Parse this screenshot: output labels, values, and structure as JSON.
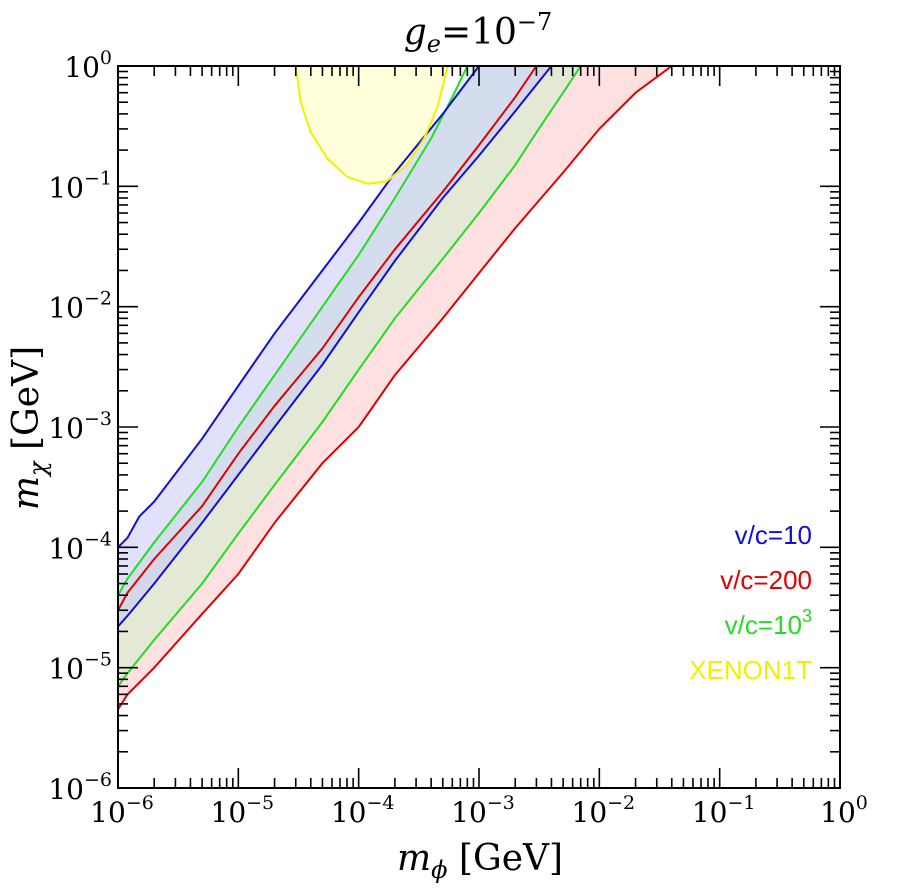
{
  "chart_data": {
    "type": "area",
    "title": {
      "base": "g",
      "sub": "e",
      "eq": "=10",
      "sup": "−7"
    },
    "xlabel": {
      "base": "m",
      "sub": "ϕ",
      "unit": " [GeV]"
    },
    "ylabel": {
      "base": "m",
      "sub": "χ",
      "unit": " [GeV]"
    },
    "xscale": "log",
    "yscale": "log",
    "xlim": [
      1e-06,
      1
    ],
    "ylim": [
      1e-06,
      1
    ],
    "x_ticks": [
      {
        "base": "10",
        "exp": "−6",
        "value": 1e-06
      },
      {
        "base": "10",
        "exp": "−5",
        "value": 1e-05
      },
      {
        "base": "10",
        "exp": "−4",
        "value": 0.0001
      },
      {
        "base": "10",
        "exp": "−3",
        "value": 0.001
      },
      {
        "base": "10",
        "exp": "−2",
        "value": 0.01
      },
      {
        "base": "10",
        "exp": "−1",
        "value": 0.1
      },
      {
        "base": "10",
        "exp": "0",
        "value": 1
      }
    ],
    "y_ticks": [
      {
        "base": "10",
        "exp": "−6",
        "value": 1e-06
      },
      {
        "base": "10",
        "exp": "−5",
        "value": 1e-05
      },
      {
        "base": "10",
        "exp": "−4",
        "value": 0.0001
      },
      {
        "base": "10",
        "exp": "−3",
        "value": 0.001
      },
      {
        "base": "10",
        "exp": "−2",
        "value": 0.01
      },
      {
        "base": "10",
        "exp": "−1",
        "value": 0.1
      },
      {
        "base": "10",
        "exp": "0",
        "value": 1
      }
    ],
    "series": [
      {
        "name": "v/c=200",
        "label": {
          "text": "v/c=200",
          "sup": ""
        },
        "color": "#e00000",
        "fill": "#ffc8c8",
        "upper": [
          [
            1e-06,
            3e-05
          ],
          [
            1.2e-06,
            4.2e-05
          ],
          [
            2e-06,
            8e-05
          ],
          [
            5e-06,
            0.00022
          ],
          [
            1e-05,
            0.0006
          ],
          [
            2e-05,
            0.0015
          ],
          [
            5e-05,
            0.0045
          ],
          [
            0.0001,
            0.012
          ],
          [
            0.0002,
            0.03
          ],
          [
            0.0005,
            0.09
          ],
          [
            0.001,
            0.22
          ],
          [
            0.002,
            0.55
          ],
          [
            0.003,
            1
          ]
        ],
        "lower": [
          [
            1e-06,
            4.5e-06
          ],
          [
            1.2e-06,
            6e-06
          ],
          [
            2e-06,
            1e-05
          ],
          [
            5e-06,
            2.8e-05
          ],
          [
            1e-05,
            6e-05
          ],
          [
            2e-05,
            0.00016
          ],
          [
            5e-05,
            0.0005
          ],
          [
            0.0001,
            0.001
          ],
          [
            0.0002,
            0.0027
          ],
          [
            0.0005,
            0.008
          ],
          [
            0.001,
            0.019
          ],
          [
            0.002,
            0.045
          ],
          [
            0.005,
            0.13
          ],
          [
            0.01,
            0.3
          ],
          [
            0.02,
            0.6
          ],
          [
            0.04,
            1
          ]
        ]
      },
      {
        "name": "v/c=10^3",
        "label": {
          "text": "v/c=10",
          "sup": "3"
        },
        "color": "#22dd22",
        "fill": "#ccf0cc",
        "upper": [
          [
            1e-06,
            4e-05
          ],
          [
            1.2e-06,
            5.5e-05
          ],
          [
            2e-06,
            0.00011
          ],
          [
            5e-06,
            0.00035
          ],
          [
            1e-05,
            0.001
          ],
          [
            2e-05,
            0.0027
          ],
          [
            5e-05,
            0.01
          ],
          [
            0.0001,
            0.027
          ],
          [
            0.0002,
            0.08
          ],
          [
            0.0004,
            0.25
          ],
          [
            0.0006,
            0.55
          ],
          [
            0.0008,
            1
          ]
        ],
        "lower": [
          [
            1e-06,
            7e-06
          ],
          [
            1.2e-06,
            9e-06
          ],
          [
            2e-06,
            1.7e-05
          ],
          [
            5e-06,
            5e-05
          ],
          [
            1e-05,
            0.00013
          ],
          [
            2e-05,
            0.00033
          ],
          [
            5e-05,
            0.0011
          ],
          [
            0.0001,
            0.003
          ],
          [
            0.0002,
            0.008
          ],
          [
            0.0005,
            0.025
          ],
          [
            0.001,
            0.06
          ],
          [
            0.002,
            0.15
          ],
          [
            0.003,
            0.28
          ],
          [
            0.005,
            0.6
          ],
          [
            0.007,
            1
          ]
        ]
      },
      {
        "name": "v/c=10",
        "label": {
          "text": "v/c=10",
          "sup": ""
        },
        "color": "#1010d0",
        "fill": "#c8c8f5",
        "upper": [
          [
            1e-06,
            0.0001
          ],
          [
            1.2e-06,
            0.00012
          ],
          [
            1.5e-06,
            0.00018
          ],
          [
            2e-06,
            0.00024
          ],
          [
            5e-06,
            0.0008
          ],
          [
            1e-05,
            0.0022
          ],
          [
            2e-05,
            0.006
          ],
          [
            5e-05,
            0.02
          ],
          [
            0.0001,
            0.05
          ],
          [
            0.0002,
            0.13
          ],
          [
            0.0005,
            0.4
          ],
          [
            0.001,
            1
          ]
        ],
        "lower": [
          [
            1e-06,
            2.2e-05
          ],
          [
            1.2e-06,
            2.7e-05
          ],
          [
            2e-06,
            5e-05
          ],
          [
            5e-06,
            0.00016
          ],
          [
            1e-05,
            0.0004
          ],
          [
            2e-05,
            0.001
          ],
          [
            5e-05,
            0.0033
          ],
          [
            0.0001,
            0.009
          ],
          [
            0.0002,
            0.024
          ],
          [
            0.0005,
            0.08
          ],
          [
            0.001,
            0.18
          ],
          [
            0.002,
            0.42
          ],
          [
            0.004,
            1
          ]
        ]
      },
      {
        "name": "XENON1T",
        "label": {
          "text": "XENON1T",
          "sup": ""
        },
        "color": "#f0f000",
        "fill": "#ffffcc",
        "region": [
          [
            3e-05,
            1
          ],
          [
            3.3e-05,
            0.5
          ],
          [
            4e-05,
            0.28
          ],
          [
            5.5e-05,
            0.17
          ],
          [
            8e-05,
            0.12
          ],
          [
            0.00012,
            0.105
          ],
          [
            0.00017,
            0.11
          ],
          [
            0.00025,
            0.15
          ],
          [
            0.00035,
            0.25
          ],
          [
            0.00045,
            0.45
          ],
          [
            0.00055,
            1
          ]
        ]
      }
    ]
  }
}
